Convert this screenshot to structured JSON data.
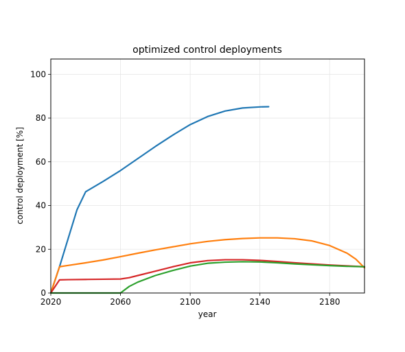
{
  "chart_data": {
    "type": "line",
    "title": "optimized control deployments",
    "xlabel": "year",
    "ylabel": "control deployment [%]",
    "xlim": [
      2020,
      2200
    ],
    "ylim": [
      0,
      107
    ],
    "xticks": [
      2020,
      2060,
      2100,
      2140,
      2180
    ],
    "yticks": [
      0,
      20,
      40,
      60,
      80,
      100
    ],
    "grid": true,
    "series": [
      {
        "color": "#1f77b4",
        "x": [
          2020,
          2025,
          2030,
          2035,
          2040,
          2050,
          2060,
          2070,
          2080,
          2090,
          2100,
          2110,
          2120,
          2130,
          2140,
          2145
        ],
        "y": [
          0,
          12,
          25,
          38,
          46.3,
          51,
          56,
          61.5,
          67,
          72.2,
          77,
          80.7,
          83.2,
          84.6,
          85.1,
          85.2
        ]
      },
      {
        "color": "#ff7f0e",
        "x": [
          2020,
          2025,
          2030,
          2040,
          2050,
          2060,
          2070,
          2080,
          2090,
          2100,
          2110,
          2120,
          2130,
          2140,
          2150,
          2160,
          2170,
          2180,
          2190,
          2195,
          2200
        ],
        "y": [
          0,
          12,
          12.6,
          13.8,
          15.1,
          16.6,
          18.2,
          19.7,
          21.1,
          22.5,
          23.6,
          24.4,
          24.9,
          25.2,
          25.2,
          24.8,
          23.8,
          21.7,
          18.2,
          15.5,
          11.5
        ]
      },
      {
        "color": "#d62728",
        "x": [
          2020,
          2025,
          2030,
          2040,
          2050,
          2060,
          2065,
          2070,
          2080,
          2090,
          2100,
          2110,
          2120,
          2130,
          2140,
          2150,
          2160,
          2170,
          2180,
          2190,
          2200
        ],
        "y": [
          0,
          6,
          6.1,
          6.2,
          6.3,
          6.4,
          7,
          8,
          10,
          12,
          13.8,
          14.8,
          15.2,
          15.2,
          14.9,
          14.4,
          13.8,
          13.3,
          12.8,
          12.4,
          12
        ]
      },
      {
        "color": "#2ca02c",
        "x": [
          2020,
          2030,
          2040,
          2050,
          2060,
          2065,
          2070,
          2080,
          2090,
          2100,
          2110,
          2120,
          2130,
          2140,
          2150,
          2160,
          2170,
          2180,
          2190,
          2200
        ],
        "y": [
          0,
          0,
          0,
          0,
          0,
          3,
          5,
          8,
          10.3,
          12.3,
          13.6,
          14.1,
          14.3,
          14.2,
          13.8,
          13.3,
          12.9,
          12.5,
          12.2,
          12
        ]
      }
    ]
  }
}
